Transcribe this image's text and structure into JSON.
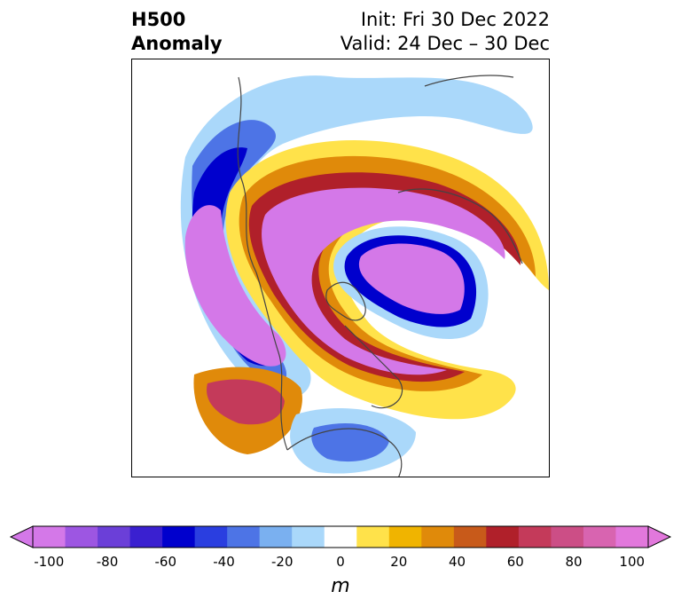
{
  "header": {
    "variable": "H500",
    "product": "Anomaly",
    "init": "Init: Fri 30 Dec 2022",
    "valid": "Valid: 24 Dec – 30 Dec"
  },
  "colorbar": {
    "unit": "m",
    "ticks": [
      "-100",
      "-80",
      "-60",
      "-40",
      "-20",
      "0",
      "20",
      "40",
      "60",
      "80",
      "100"
    ],
    "colors": [
      "#d478e8",
      "#9d56e2",
      "#6b3fd8",
      "#3a20d0",
      "#0000cd",
      "#2a3ee0",
      "#4d74e6",
      "#7ab0f0",
      "#aad8fa",
      "#ffffff",
      "#ffe24a",
      "#f0b400",
      "#e08a0a",
      "#c85a1a",
      "#b0202a",
      "#c43a5a",
      "#cc4e86",
      "#d864b0",
      "#e278dc"
    ]
  },
  "legend_icons": {
    "left_arrow": "extend-min-arrow",
    "right_arrow": "extend-max-arrow"
  }
}
